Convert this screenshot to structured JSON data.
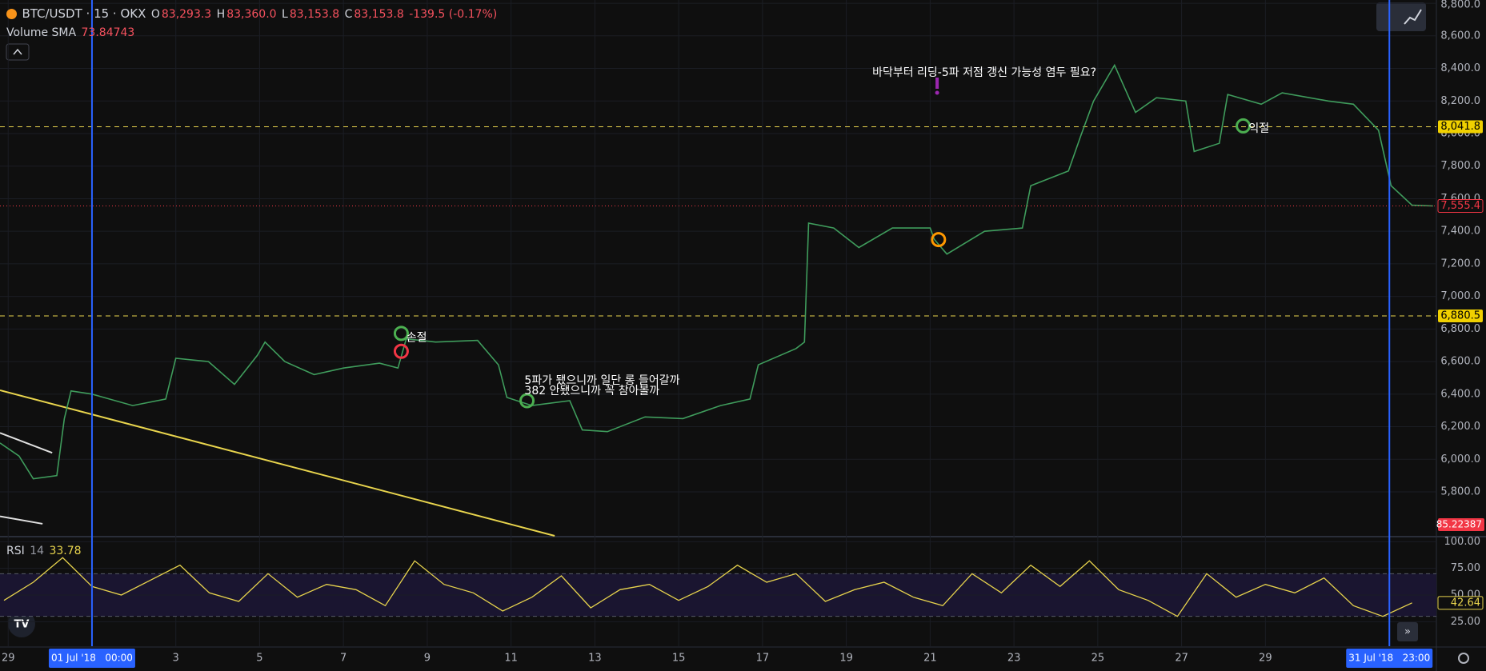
{
  "header": {
    "symbol": "BTC/USDT · 15 · OKX",
    "o_label": "O",
    "open": "83,293.3",
    "h_label": "H",
    "high": "83,360.0",
    "l_label": "L",
    "low": "83,153.8",
    "c_label": "C",
    "close": "83,153.8",
    "change": "-139.5 (-0.17%)",
    "volume_label": "Volume SMA",
    "volume_sma": "73.84743",
    "volume_last": "85.22387",
    "rsi_label": "RSI",
    "rsi_period": "14",
    "rsi_value": "33.78"
  },
  "chart_data": {
    "type": "line",
    "color": "#3f9c5c",
    "x": [
      -1.195,
      -0.74,
      -0.4,
      0.16,
      0.34,
      0.5,
      1.0,
      1.97,
      2.76,
      3.0,
      3.78,
      4.4,
      4.95,
      5.13,
      5.6,
      6.3,
      7.0,
      7.86,
      8.3,
      8.5,
      9.2,
      10.2,
      10.7,
      10.9,
      11.5,
      12.4,
      12.7,
      13.3,
      14.2,
      15.1,
      16.0,
      16.7,
      16.9,
      17.8,
      18.0,
      18.1,
      18.7,
      19.3,
      20.1,
      21.0,
      21.1,
      21.4,
      22.3,
      23.2,
      23.4,
      24.3,
      24.6,
      24.9,
      25.4,
      25.9,
      26.4,
      27.1,
      27.3,
      27.9,
      28.1,
      28.9,
      29.4,
      30.5,
      31.1,
      31.7,
      32.0,
      32.5,
      33.0
    ],
    "values": [
      6100,
      6020,
      5880,
      5900,
      6250,
      6420,
      6400,
      6330,
      6370,
      6620,
      6600,
      6460,
      6640,
      6720,
      6600,
      6520,
      6560,
      6590,
      6560,
      6740,
      6720,
      6730,
      6580,
      6380,
      6330,
      6360,
      6180,
      6170,
      6260,
      6250,
      6330,
      6370,
      6580,
      6680,
      6720,
      7450,
      7420,
      7300,
      7420,
      7420,
      7350,
      7260,
      7400,
      7420,
      7680,
      7770,
      7990,
      8200,
      8420,
      8130,
      8220,
      8200,
      7890,
      7940,
      8240,
      8180,
      8250,
      8200,
      8180,
      8020,
      7680,
      7560,
      7555.4
    ],
    "last_label": "7,555.4",
    "xlim": [
      -1.195,
      33.08
    ],
    "ylim": [
      5530,
      8820
    ],
    "xticks": [
      {
        "value": -1,
        "label": "29"
      },
      3,
      5,
      7,
      9,
      11,
      13,
      15,
      17,
      19,
      21,
      23,
      25,
      27,
      29
    ],
    "yticks": [
      {
        "value": 5800,
        "label": "5,800.0"
      },
      {
        "value": 6000,
        "label": "6,000.0"
      },
      {
        "value": 6200,
        "label": "6,200.0"
      },
      {
        "value": 6400,
        "label": "6,400.0"
      },
      {
        "value": 6600,
        "label": "6,600.0"
      },
      {
        "value": 6800,
        "label": "6,800.0"
      },
      {
        "value": 7000,
        "label": "7,000.0"
      },
      {
        "value": 7200,
        "label": "7,200.0"
      },
      {
        "value": 7400,
        "label": "7,400.0"
      },
      {
        "value": 7600,
        "label": "7,600.0"
      },
      {
        "value": 7800,
        "label": "7,800.0"
      },
      {
        "value": 8000,
        "label": "8,000.0"
      },
      {
        "value": 8200,
        "label": "8,200.0"
      },
      {
        "value": 8400,
        "label": "8,400.0"
      },
      {
        "value": 8600,
        "label": "8,600.0"
      },
      {
        "value": 8800,
        "label": "8,800.0"
      }
    ],
    "hlines": [
      {
        "value": 8041.8,
        "label": "8,041.8"
      },
      {
        "value": 6880.5,
        "label": "6,880.5"
      }
    ],
    "vlines": [
      {
        "value": 1,
        "label": "01 Jul '18   00:00"
      },
      {
        "value": 31.958,
        "label": "31 Jul '18   23:00"
      }
    ],
    "trendlines": [
      {
        "color": "#e8d44d",
        "x": [
          -1.195,
          12.04
        ],
        "y": [
          6424,
          5530
        ]
      },
      {
        "color": "#e0e0e0",
        "x": [
          -1.195,
          0.05
        ],
        "y": [
          6162,
          6040
        ]
      },
      {
        "color": "#e0e0e0",
        "x": [
          -1.195,
          -0.18
        ],
        "y": [
          5650,
          5604
        ]
      }
    ],
    "annotations": [
      {
        "text": "바닥부터 리딩-5파 저점 갱신 가능성 염두 필요?",
        "x": 19.62,
        "y": 8373
      },
      {
        "text": "5파가 됐으니까 일단 롱 들어갈까",
        "x": 11.32,
        "y": 6483
      },
      {
        "text": "382 안됐으니까 꼭 참아볼까",
        "x": 11.32,
        "y": 6418
      },
      {
        "text": "손절",
        "x": 8.5,
        "y": 6745
      },
      {
        "text": "익절",
        "x": 28.6,
        "y": 8030
      }
    ],
    "markers": [
      {
        "x": 8.38,
        "y": 6773,
        "color": "#4caf50"
      },
      {
        "x": 8.38,
        "y": 6663,
        "color": "#f23645"
      },
      {
        "x": 11.38,
        "y": 6360,
        "color": "#4caf50"
      },
      {
        "x": 21.2,
        "y": 7349,
        "color": "#ff9800"
      },
      {
        "x": 28.47,
        "y": 8047,
        "color": "#4caf50"
      }
    ],
    "rsi": {
      "color": "#e8d44d",
      "ylim": [
        2,
        104
      ],
      "band": [
        30,
        70
      ],
      "yticks": [
        {
          "value": 25,
          "label": "25.00"
        },
        {
          "value": 50,
          "label": "50.00"
        },
        {
          "value": 75,
          "label": "75.00"
        },
        {
          "value": 100,
          "label": "100.00"
        }
      ],
      "x": [
        -1.1,
        -0.4,
        0.3,
        1,
        1.7,
        2.4,
        3.1,
        3.8,
        4.5,
        5.2,
        5.9,
        6.6,
        7.3,
        8,
        8.7,
        9.4,
        10.1,
        10.8,
        11.5,
        12.2,
        12.9,
        13.6,
        14.3,
        15,
        15.7,
        16.4,
        17.1,
        17.8,
        18.5,
        19.2,
        19.9,
        20.6,
        21.3,
        22,
        22.7,
        23.4,
        24.1,
        24.8,
        25.5,
        26.2,
        26.9,
        27.6,
        28.3,
        29,
        29.7,
        30.4,
        31.1,
        31.8,
        32.5
      ],
      "values": [
        45,
        62,
        85,
        58,
        50,
        64,
        78,
        52,
        44,
        70,
        48,
        60,
        55,
        40,
        82,
        60,
        52,
        35,
        48,
        68,
        38,
        55,
        60,
        45,
        58,
        78,
        62,
        70,
        44,
        55,
        62,
        48,
        40,
        70,
        52,
        78,
        58,
        82,
        55,
        45,
        30,
        70,
        48,
        60,
        52,
        66,
        40,
        30,
        42.64
      ]
    }
  }
}
